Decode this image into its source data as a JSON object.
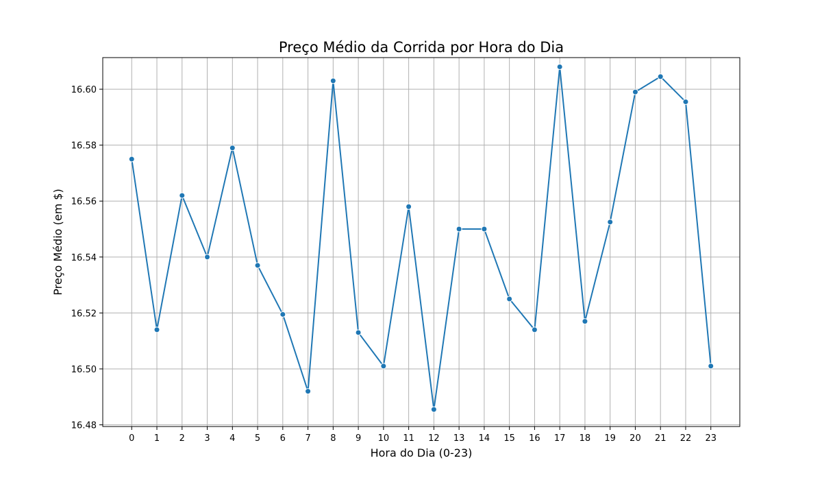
{
  "chart_data": {
    "type": "line",
    "title": "Preço Médio da Corrida por Hora do Dia",
    "xlabel": "Hora do Dia (0-23)",
    "ylabel": "Preço Médio (em $)",
    "x": [
      0,
      1,
      2,
      3,
      4,
      5,
      6,
      7,
      8,
      9,
      10,
      11,
      12,
      13,
      14,
      15,
      16,
      17,
      18,
      19,
      20,
      21,
      22,
      23
    ],
    "x_ticks": [
      "0",
      "1",
      "2",
      "3",
      "4",
      "5",
      "6",
      "7",
      "8",
      "9",
      "10",
      "11",
      "12",
      "13",
      "14",
      "15",
      "16",
      "17",
      "18",
      "19",
      "20",
      "21",
      "22",
      "23"
    ],
    "series": [
      {
        "values": [
          16.575,
          16.514,
          16.562,
          16.54,
          16.579,
          16.537,
          16.5195,
          16.492,
          16.603,
          16.513,
          16.501,
          16.558,
          16.4855,
          16.55,
          16.55,
          16.525,
          16.514,
          16.608,
          16.517,
          16.5525,
          16.599,
          16.6045,
          16.5955,
          16.501
        ]
      }
    ],
    "y_ticks": [
      "16.48",
      "16.50",
      "16.52",
      "16.54",
      "16.56",
      "16.58",
      "16.60"
    ],
    "y_tick_values": [
      16.48,
      16.5,
      16.52,
      16.54,
      16.56,
      16.58,
      16.6
    ],
    "xlim": [
      -1.15,
      24.15
    ],
    "ylim": [
      16.4794,
      16.6113
    ],
    "grid": true,
    "colors": {
      "line": "#1f77b4",
      "grid": "#b0b0b0",
      "axes": "#000000"
    }
  }
}
